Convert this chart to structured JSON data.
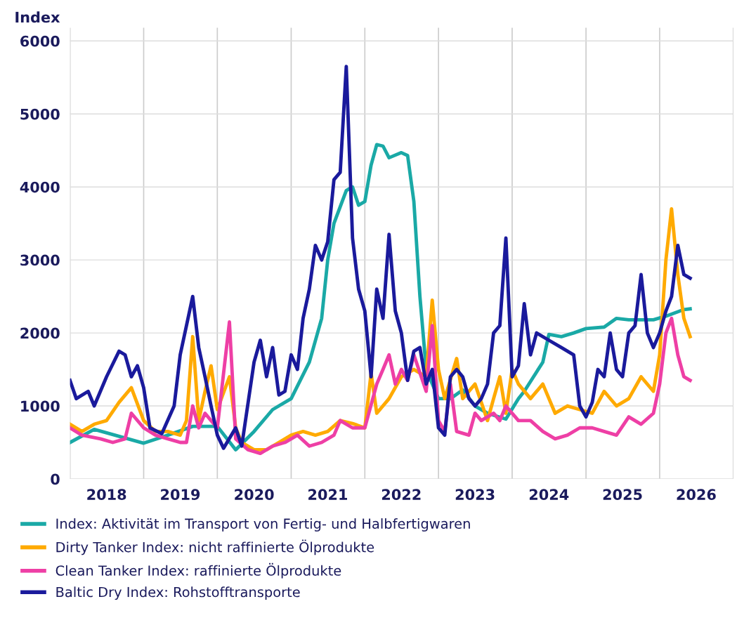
{
  "chart_data": {
    "type": "line",
    "ylabel": "Index",
    "ylim": [
      0,
      6180
    ],
    "yticks": [
      0,
      1000,
      2000,
      3000,
      4000,
      5000,
      6000
    ],
    "xlim": [
      "2018-01-01",
      "2027-01-01"
    ],
    "xticks": [
      {
        "value": "2018-01-01",
        "label": null
      },
      {
        "value": "2018-07-01",
        "label": "2018"
      },
      {
        "value": "2019-01-01",
        "label": null
      },
      {
        "value": "2019-07-01",
        "label": "2019"
      },
      {
        "value": "2020-01-01",
        "label": null
      },
      {
        "value": "2020-07-01",
        "label": "2020"
      },
      {
        "value": "2021-01-01",
        "label": null
      },
      {
        "value": "2021-07-01",
        "label": "2021"
      },
      {
        "value": "2022-01-01",
        "label": null
      },
      {
        "value": "2022-07-01",
        "label": "2022"
      },
      {
        "value": "2023-01-01",
        "label": null
      },
      {
        "value": "2023-07-01",
        "label": "2023"
      },
      {
        "value": "2024-01-01",
        "label": null
      },
      {
        "value": "2024-07-01",
        "label": "2024"
      },
      {
        "value": "2025-01-01",
        "label": null
      },
      {
        "value": "2025-07-01",
        "label": "2025"
      },
      {
        "value": "2026-01-01",
        "label": null
      },
      {
        "value": "2026-07-01",
        "label": "2026"
      },
      {
        "value": "2027-01-01",
        "label": null
      }
    ],
    "grid": true,
    "legend": "bottom",
    "marker": "none",
    "line_style": "solid",
    "series": [
      {
        "name": "Index: Aktivität im Transport von Fertig- und Halbfertigwaren",
        "color": "#1aa9a6",
        "x": [
          "2018-01",
          "2018-05",
          "2019-01",
          "2019-05",
          "2019-09",
          "2020-01",
          "2020-04",
          "2020-07",
          "2020-10",
          "2021-01",
          "2021-04",
          "2021-06",
          "2021-07",
          "2021-08",
          "2021-10",
          "2021-11",
          "2021-12",
          "2022-01",
          "2022-02",
          "2022-03",
          "2022-04",
          "2022-05",
          "2022-07",
          "2022-08",
          "2022-09",
          "2022-10",
          "2022-11",
          "2023-01",
          "2023-03",
          "2023-05",
          "2023-07",
          "2023-09",
          "2023-12",
          "2024-02",
          "2024-03",
          "2024-06",
          "2024-07",
          "2024-09",
          "2024-11",
          "2025-01",
          "2025-04",
          "2025-06",
          "2025-08",
          "2025-12",
          "2026-02",
          "2026-05",
          "2026-06"
        ],
        "values": [
          500,
          680,
          490,
          600,
          720,
          720,
          400,
          650,
          950,
          1100,
          1600,
          2200,
          3000,
          3500,
          3950,
          4000,
          3750,
          3800,
          4300,
          4580,
          4560,
          4400,
          4470,
          4430,
          3800,
          2500,
          1500,
          1100,
          1100,
          1220,
          1000,
          900,
          820,
          1100,
          1200,
          1600,
          1980,
          1950,
          2000,
          2060,
          2080,
          2200,
          2180,
          2180,
          2230,
          2320,
          2330
        ]
      },
      {
        "name": "Dirty Tanker Index: nicht raffinierte Ölprodukte",
        "color": "#ffaa00",
        "x": [
          "2018-01",
          "2018-03",
          "2018-05",
          "2018-07",
          "2018-09",
          "2018-11",
          "2019-01",
          "2019-03",
          "2019-05",
          "2019-07",
          "2019-08",
          "2019-09",
          "2019-10",
          "2019-11",
          "2019-12",
          "2020-01",
          "2020-03",
          "2020-04",
          "2020-05",
          "2020-07",
          "2020-09",
          "2020-11",
          "2021-01",
          "2021-03",
          "2021-05",
          "2021-07",
          "2021-09",
          "2021-11",
          "2022-01",
          "2022-02",
          "2022-03",
          "2022-05",
          "2022-07",
          "2022-09",
          "2022-11",
          "2022-12",
          "2023-01",
          "2023-02",
          "2023-04",
          "2023-05",
          "2023-07",
          "2023-09",
          "2023-10",
          "2023-11",
          "2023-12",
          "2024-01",
          "2024-02",
          "2024-04",
          "2024-06",
          "2024-08",
          "2024-10",
          "2024-12",
          "2025-02",
          "2025-04",
          "2025-06",
          "2025-08",
          "2025-10",
          "2025-12",
          "2026-01",
          "2026-02",
          "2026-03",
          "2026-04",
          "2026-05",
          "2026-06"
        ],
        "values": [
          750,
          650,
          750,
          800,
          1050,
          1250,
          800,
          650,
          650,
          600,
          800,
          1950,
          800,
          1200,
          1550,
          950,
          1400,
          700,
          500,
          400,
          400,
          500,
          600,
          650,
          600,
          650,
          800,
          760,
          700,
          1450,
          900,
          1100,
          1400,
          1500,
          1400,
          2450,
          1500,
          1100,
          1650,
          1100,
          1300,
          800,
          1100,
          1400,
          900,
          1500,
          1300,
          1100,
          1300,
          900,
          1000,
          950,
          900,
          1200,
          1000,
          1100,
          1400,
          1200,
          1700,
          3000,
          3700,
          2800,
          2200,
          1950
        ]
      },
      {
        "name": "Clean Tanker Index: raffinierte Ölprodukte",
        "color": "#ee3fa5",
        "x": [
          "2018-01",
          "2018-03",
          "2018-06",
          "2018-08",
          "2018-10",
          "2018-11",
          "2019-01",
          "2019-03",
          "2019-05",
          "2019-07",
          "2019-08",
          "2019-09",
          "2019-10",
          "2019-11",
          "2019-12",
          "2020-01",
          "2020-03",
          "2020-04",
          "2020-06",
          "2020-08",
          "2020-10",
          "2020-12",
          "2021-02",
          "2021-04",
          "2021-06",
          "2021-08",
          "2021-09",
          "2021-11",
          "2022-01",
          "2022-03",
          "2022-04",
          "2022-05",
          "2022-06",
          "2022-07",
          "2022-08",
          "2022-09",
          "2022-11",
          "2022-12",
          "2023-01",
          "2023-02",
          "2023-03",
          "2023-04",
          "2023-06",
          "2023-07",
          "2023-08",
          "2023-10",
          "2023-11",
          "2023-12",
          "2024-02",
          "2024-04",
          "2024-06",
          "2024-08",
          "2024-10",
          "2024-12",
          "2025-02",
          "2025-04",
          "2025-06",
          "2025-08",
          "2025-10",
          "2025-12",
          "2026-01",
          "2026-02",
          "2026-03",
          "2026-04",
          "2026-05",
          "2026-06"
        ],
        "values": [
          700,
          600,
          550,
          500,
          550,
          900,
          700,
          600,
          550,
          500,
          500,
          1000,
          700,
          900,
          800,
          700,
          2150,
          550,
          400,
          350,
          450,
          500,
          600,
          450,
          500,
          600,
          800,
          700,
          700,
          1300,
          1500,
          1700,
          1300,
          1500,
          1350,
          1700,
          1200,
          2100,
          800,
          650,
          1300,
          650,
          600,
          900,
          800,
          900,
          800,
          1000,
          800,
          800,
          650,
          550,
          600,
          700,
          700,
          650,
          600,
          850,
          750,
          900,
          1300,
          2000,
          2200,
          1700,
          1400,
          1350
        ]
      },
      {
        "name": "Baltic Dry Index: Rohstofftransporte",
        "color": "#1a1a9c",
        "x": [
          "2018-01",
          "2018-02",
          "2018-04",
          "2018-05",
          "2018-07",
          "2018-09",
          "2018-10",
          "2018-11",
          "2018-12",
          "2019-01",
          "2019-02",
          "2019-04",
          "2019-06",
          "2019-07",
          "2019-08",
          "2019-09",
          "2019-10",
          "2019-11",
          "2019-12",
          "2020-01",
          "2020-02",
          "2020-04",
          "2020-05",
          "2020-07",
          "2020-08",
          "2020-09",
          "2020-10",
          "2020-11",
          "2020-12",
          "2021-01",
          "2021-02",
          "2021-03",
          "2021-04",
          "2021-05",
          "2021-06",
          "2021-07",
          "2021-08",
          "2021-09",
          "2021-10",
          "2021-11",
          "2021-12",
          "2022-01",
          "2022-02",
          "2022-03",
          "2022-04",
          "2022-05",
          "2022-06",
          "2022-07",
          "2022-08",
          "2022-09",
          "2022-10",
          "2022-11",
          "2022-12",
          "2023-01",
          "2023-02",
          "2023-03",
          "2023-04",
          "2023-05",
          "2023-06",
          "2023-07",
          "2023-08",
          "2023-09",
          "2023-10",
          "2023-11",
          "2023-12",
          "2024-01",
          "2024-02",
          "2024-03",
          "2024-04",
          "2024-05",
          "2024-07",
          "2024-09",
          "2024-11",
          "2024-12",
          "2025-01",
          "2025-02",
          "2025-03",
          "2025-04",
          "2025-05",
          "2025-06",
          "2025-07",
          "2025-08",
          "2025-09",
          "2025-10",
          "2025-11",
          "2025-12",
          "2026-01",
          "2026-02",
          "2026-03",
          "2026-04",
          "2026-05",
          "2026-06"
        ],
        "values": [
          1350,
          1100,
          1200,
          1000,
          1400,
          1750,
          1700,
          1400,
          1550,
          1250,
          700,
          620,
          1000,
          1700,
          2100,
          2500,
          1800,
          1400,
          1000,
          600,
          420,
          700,
          450,
          1600,
          1900,
          1400,
          1800,
          1150,
          1200,
          1700,
          1500,
          2200,
          2600,
          3200,
          3000,
          3250,
          4100,
          4200,
          5650,
          3300,
          2600,
          2300,
          1400,
          2600,
          2200,
          3350,
          2300,
          2000,
          1350,
          1750,
          1800,
          1300,
          1500,
          700,
          600,
          1400,
          1500,
          1400,
          1100,
          1000,
          1100,
          1300,
          2000,
          2100,
          3300,
          1400,
          1550,
          2400,
          1700,
          2000,
          1900,
          1800,
          1700,
          1000,
          850,
          1050,
          1500,
          1400,
          2000,
          1500,
          1400,
          2000,
          2100,
          2800,
          2000,
          1800,
          2000,
          2300,
          2500,
          3200,
          2800,
          2750
        ]
      }
    ]
  }
}
